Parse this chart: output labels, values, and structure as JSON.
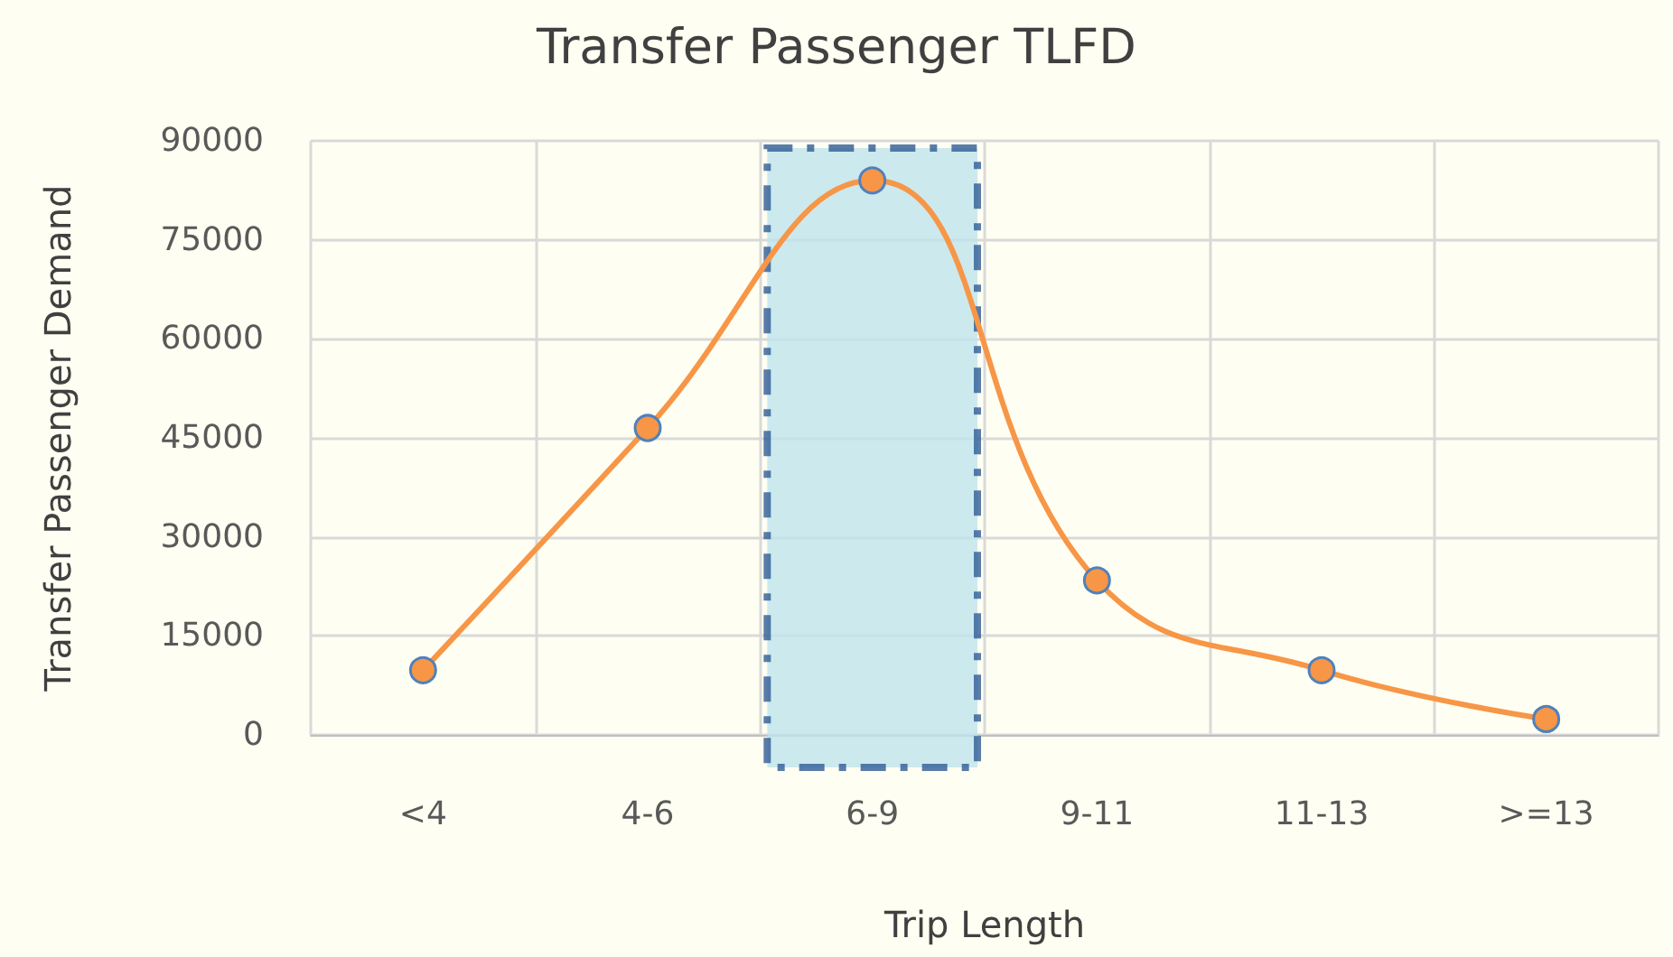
{
  "chart_data": {
    "type": "line",
    "title": "Transfer Passenger TLFD",
    "xlabel": "Trip Length",
    "ylabel": "Transfer Passenger Demand",
    "categories": [
      "<4",
      "4-6",
      "6-9",
      "9-11",
      "11-13",
      ">=13"
    ],
    "series": [
      {
        "color": "#f79646",
        "values": [
          9800,
          46500,
          84000,
          23400,
          9800,
          2400
        ]
      }
    ],
    "ylim": [
      0,
      90000
    ],
    "yticks": [
      0,
      15000,
      30000,
      45000,
      60000,
      75000,
      90000
    ],
    "bands": [
      {
        "axis": "x",
        "from": "6-9",
        "to": "6-9",
        "color": "#bfe3ec"
      }
    ],
    "grid": true,
    "marker": "circle",
    "line_style": "solid"
  }
}
